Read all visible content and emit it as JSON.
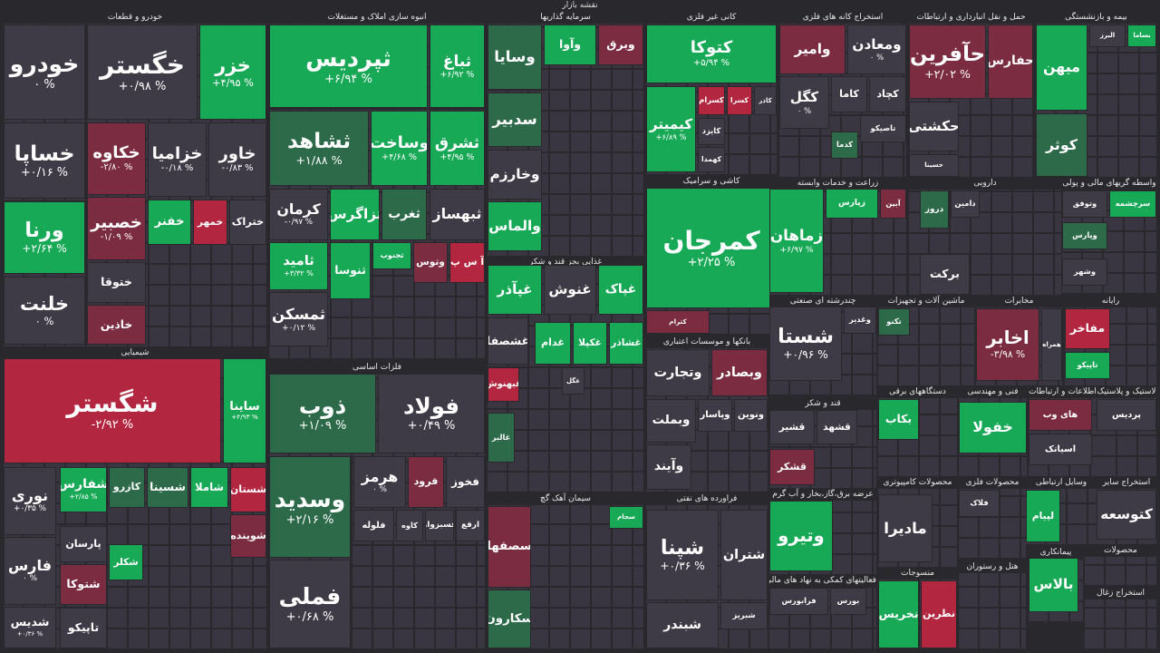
{
  "header": {
    "title": "نقشه بازار"
  },
  "sectors": [
    {
      "title": "خودرو و قطعات",
      "tiles": [
        {
          "name": "خودرو",
          "change": "۰ %",
          "color": "#3f3b46"
        },
        {
          "name": "خگستر",
          "change": "+۰/۹۸ %",
          "color": "#3f3b46"
        },
        {
          "name": "خزر",
          "change": "+۴/۹۵ %",
          "color": "#18a957"
        },
        {
          "name": "خساپا",
          "change": "+۰/۱۶ %",
          "color": "#3f3b46"
        },
        {
          "name": "خکاوه",
          "change": "-۲/۸۰ %",
          "color": "#7b2c40"
        },
        {
          "name": "خزامیا",
          "change": "-۰/۱۸ %",
          "color": "#3f3b46"
        },
        {
          "name": "خاور",
          "change": "-۰/۸۳ %",
          "color": "#3f3b46"
        },
        {
          "name": "ورنا",
          "change": "+۲/۶۴ %",
          "color": "#18a957"
        },
        {
          "name": "خصبیر",
          "change": "-۱/۰۹ %",
          "color": "#7b2c40"
        },
        {
          "name": "خفنر",
          "color": "#18a957"
        },
        {
          "name": "خمهر",
          "color": "#b3263f"
        },
        {
          "name": "ختراک",
          "color": "#3f3b46"
        },
        {
          "name": "خلنت",
          "change": "۰ %",
          "color": "#3f3b46"
        },
        {
          "name": "ختوقا",
          "color": "#3f3b46"
        },
        {
          "name": "خاذین",
          "color": "#7b2c40"
        }
      ]
    },
    {
      "title": "شیمیایی",
      "tiles": [
        {
          "name": "شگستر",
          "change": "-۲/۹۲ %",
          "color": "#b3263f"
        },
        {
          "name": "ساینا",
          "change": "+۴/۹۳ %",
          "color": "#18a957"
        },
        {
          "name": "نوری",
          "change": "+۰/۳۵ %",
          "color": "#3f3b46"
        },
        {
          "name": "فارس",
          "change": "۰ %",
          "color": "#3f3b46"
        },
        {
          "name": "شدیس",
          "change": "+۰/۳۶ %",
          "color": "#3f3b46"
        },
        {
          "name": "شفارس",
          "change": "+۲/۸۵ %",
          "color": "#18a957"
        },
        {
          "name": "کازرو",
          "color": "#2d6a4a"
        },
        {
          "name": "شسینا",
          "color": "#2d6a4a"
        },
        {
          "name": "شاملا",
          "color": "#18a957"
        },
        {
          "name": "شستان",
          "color": "#b3263f"
        },
        {
          "name": "شوینده",
          "color": "#7b2c40"
        },
        {
          "name": "پارسان",
          "color": "#3f3b46"
        },
        {
          "name": "شتوکا",
          "color": "#7b2c40"
        },
        {
          "name": "تاپیکو",
          "color": "#3f3b46"
        },
        {
          "name": "شکلر",
          "color": "#18a957"
        }
      ]
    },
    {
      "title": "انبوه سازی املاک و مستغلات",
      "tiles": [
        {
          "name": "ثپردیس",
          "change": "+۶/۹۴ %",
          "color": "#18a957"
        },
        {
          "name": "ثباغ",
          "change": "+۶/۹۲ %",
          "color": "#18a957"
        },
        {
          "name": "ثشاهد",
          "change": "+۱/۸۸ %",
          "color": "#2d6a4a"
        },
        {
          "name": "وساخت",
          "change": "+۴/۶۸ %",
          "color": "#18a957"
        },
        {
          "name": "ثشرق",
          "change": "+۴/۹۵ %",
          "color": "#18a957"
        },
        {
          "name": "کرمان",
          "change": "-۰/۹۷ %",
          "color": "#3f3b46"
        },
        {
          "name": "ثزاگرس",
          "color": "#18a957"
        },
        {
          "name": "ثغرب",
          "color": "#2d6a4a"
        },
        {
          "name": "ثبهساز",
          "color": "#3f3b46"
        },
        {
          "name": "ثامید",
          "change": "+۳/۳۲ %",
          "color": "#18a957"
        },
        {
          "name": "ثنوسا",
          "color": "#18a957"
        },
        {
          "name": "ثمسکن",
          "change": "+۰/۱۲ %",
          "color": "#3f3b46"
        },
        {
          "name": "ثجنوب",
          "color": "#18a957"
        },
        {
          "name": "وتوس",
          "color": "#7b2c40"
        },
        {
          "name": "آ س پ",
          "color": "#b3263f"
        }
      ]
    },
    {
      "title": "فلزات اساسی",
      "tiles": [
        {
          "name": "ذوب",
          "change": "+۱/۰۹ %",
          "color": "#2d6a4a"
        },
        {
          "name": "فولاد",
          "change": "+۰/۴۹ %",
          "color": "#3f3b46"
        },
        {
          "name": "وسدید",
          "change": "+۲/۱۶ %",
          "color": "#2d6a4a"
        },
        {
          "name": "فملی",
          "change": "+۰/۶۸ %",
          "color": "#3f3b46"
        },
        {
          "name": "هرمز",
          "change": "۰ %",
          "color": "#3f3b46"
        },
        {
          "name": "فرود",
          "color": "#7b2c40"
        },
        {
          "name": "فخوز",
          "color": "#3f3b46"
        },
        {
          "name": "فلوله",
          "color": "#3f3b46"
        },
        {
          "name": "کاوه",
          "color": "#3f3b46"
        },
        {
          "name": "فسبزوار",
          "color": "#3f3b46"
        },
        {
          "name": "ارفع",
          "color": "#3f3b46"
        }
      ]
    },
    {
      "title": "سرمایه گذاریها",
      "tiles": [
        {
          "name": "وسایا",
          "color": "#2d6a4a"
        },
        {
          "name": "وآوا",
          "color": "#18a957"
        },
        {
          "name": "وبرق",
          "color": "#7b2c40"
        },
        {
          "name": "سدبیر",
          "color": "#2d6a4a"
        },
        {
          "name": "وخارزم",
          "color": "#3f3b46"
        },
        {
          "name": "والماس",
          "color": "#18a957"
        }
      ]
    },
    {
      "title": "غذایی بجز قند و شکر",
      "tiles": [
        {
          "name": "غپآذر",
          "color": "#18a957"
        },
        {
          "name": "غنوش",
          "color": "#3f3b46"
        },
        {
          "name": "غپاک",
          "color": "#18a957"
        },
        {
          "name": "غشصفا",
          "color": "#3f3b46"
        },
        {
          "name": "غدام",
          "color": "#18a957"
        },
        {
          "name": "غکپلا",
          "color": "#18a957"
        },
        {
          "name": "غشاذر",
          "color": "#18a957"
        },
        {
          "name": "غبهنوش",
          "color": "#b3263f"
        },
        {
          "name": "غگل",
          "color": "#3f3b46"
        },
        {
          "name": "غالبر",
          "color": "#2d6a4a"
        }
      ]
    },
    {
      "title": "سیمان آهک گچ",
      "tiles": [
        {
          "name": "سصفها",
          "color": "#7b2c40"
        },
        {
          "name": "سکارون",
          "color": "#2d6a4a"
        },
        {
          "name": "سجام",
          "color": "#18a957"
        }
      ]
    },
    {
      "title": "کانی غیر فلزی",
      "tiles": [
        {
          "name": "کتوکا",
          "change": "+۵/۹۴ %",
          "color": "#18a957"
        },
        {
          "name": "کیمیتر",
          "change": "+۶/۸۹ %",
          "color": "#18a957"
        },
        {
          "name": "کسرام",
          "color": "#b3263f"
        },
        {
          "name": "کسرا",
          "color": "#b3263f"
        },
        {
          "name": "کاذر",
          "color": "#3f3b46"
        },
        {
          "name": "کایزد",
          "color": "#3f3b46"
        },
        {
          "name": "کهمدا",
          "color": "#3f3b46"
        }
      ]
    },
    {
      "title": "کاشی و سرامیک",
      "tiles": [
        {
          "name": "کمرجان",
          "change": "+۲/۲۵ %",
          "color": "#18a957"
        },
        {
          "name": "کترام",
          "color": "#7b2c40"
        }
      ]
    },
    {
      "title": "بانکها و موسسات اعتباری",
      "tiles": [
        {
          "name": "وتجارت",
          "color": "#3f3b46"
        },
        {
          "name": "وبصادر",
          "color": "#7b2c40"
        },
        {
          "name": "وبملت",
          "color": "#3f3b46"
        },
        {
          "name": "وپاسار",
          "color": "#3f3b46"
        },
        {
          "name": "ونوین",
          "color": "#3f3b46"
        },
        {
          "name": "وآیند",
          "color": "#3f3b46"
        }
      ]
    },
    {
      "title": "فراورده های نفتی",
      "tiles": [
        {
          "name": "شپنا",
          "change": "+۰/۳۶ %",
          "color": "#3f3b46"
        },
        {
          "name": "شتران",
          "color": "#3f3b46"
        },
        {
          "name": "شبندر",
          "color": "#3f3b46"
        },
        {
          "name": "شبریز",
          "color": "#3f3b46"
        }
      ]
    },
    {
      "title": "استخراج کانه های فلزی",
      "tiles": [
        {
          "name": "وامیر",
          "color": "#7b2c40"
        },
        {
          "name": "ومعادن",
          "change": "۰ %",
          "color": "#3f3b46"
        },
        {
          "name": "کگل",
          "change": "۰ %",
          "color": "#3f3b46"
        },
        {
          "name": "کاما",
          "color": "#3f3b46"
        },
        {
          "name": "کچاد",
          "color": "#3f3b46"
        },
        {
          "name": "کدما",
          "color": "#2d6a4a"
        },
        {
          "name": "تاصیکو",
          "color": "#3f3b46"
        }
      ]
    },
    {
      "title": "زراعت و خدمات وابسته",
      "tiles": [
        {
          "name": "زماهان",
          "change": "+۶/۹۷ %",
          "color": "#18a957"
        },
        {
          "name": "زپارس",
          "color": "#18a957"
        },
        {
          "name": "آبین",
          "color": "#7b2c40"
        }
      ]
    },
    {
      "title": "چندرشته ای صنعتی",
      "tiles": [
        {
          "name": "شستا",
          "change": "+۰/۹۶ %",
          "color": "#3f3b46"
        },
        {
          "name": "وغدیر",
          "color": "#3f3b46"
        }
      ]
    },
    {
      "title": "قند و شکر",
      "tiles": [
        {
          "name": "قشیر",
          "color": "#3f3b46"
        },
        {
          "name": "قشهد",
          "color": "#3f3b46"
        },
        {
          "name": "قشکر",
          "color": "#7b2c40"
        }
      ]
    },
    {
      "title": "عرضه برق،گاز،بخار و آب گرم",
      "tiles": [
        {
          "name": "وتیرو",
          "color": "#18a957"
        }
      ]
    },
    {
      "title": "فعالیتهای کمکی به نهاد های مالی",
      "tiles": [
        {
          "name": "فرابورس",
          "color": "#3f3b46"
        },
        {
          "name": "بورس",
          "color": "#3f3b46"
        }
      ]
    },
    {
      "title": "حمل و نقل انبارداری و ارتباطات",
      "tiles": [
        {
          "name": "حآفرین",
          "change": "+۲/۰۲ %",
          "color": "#7b2c40"
        },
        {
          "name": "حفارس",
          "color": "#7b2c40"
        },
        {
          "name": "حکشتی",
          "color": "#3f3b46"
        },
        {
          "name": "حسینا",
          "color": "#3f3b46"
        }
      ]
    },
    {
      "title": "بیمه و بازنشستگی",
      "tiles": [
        {
          "name": "میهن",
          "color": "#18a957"
        },
        {
          "name": "البرز",
          "color": "#3f3b46"
        },
        {
          "name": "بساما",
          "color": "#18a957"
        },
        {
          "name": "کوثر",
          "color": "#2d6a4a"
        }
      ]
    },
    {
      "title": "دارویی",
      "tiles": [
        {
          "name": "دروز",
          "color": "#2d6a4a"
        },
        {
          "name": "دامین",
          "color": "#3f3b46"
        },
        {
          "name": "برکت",
          "color": "#3f3b46"
        }
      ]
    },
    {
      "title": "واسطه گریهای مالی و پولی",
      "tiles": [
        {
          "name": "وتوفق",
          "color": "#3f3b46"
        },
        {
          "name": "سرچشمه",
          "color": "#18a957"
        },
        {
          "name": "وپارس",
          "color": "#2d6a4a"
        },
        {
          "name": "وشهر",
          "color": "#3f3b46"
        }
      ]
    },
    {
      "title": "ماشین آلات و تجهیزات",
      "tiles": [
        {
          "name": "تکنو",
          "color": "#2d6a4a"
        }
      ]
    },
    {
      "title": "مخابرات",
      "tiles": [
        {
          "name": "اخابر",
          "change": "-۳/۹۸ %",
          "color": "#7b2c40"
        },
        {
          "name": "همراه",
          "color": "#3f3b46"
        }
      ]
    },
    {
      "title": "رایانه",
      "tiles": [
        {
          "name": "مفاخر",
          "color": "#b3263f"
        },
        {
          "name": "تاپیکو",
          "color": "#18a957"
        }
      ]
    },
    {
      "title": "دستگاههای برقی",
      "tiles": [
        {
          "name": "بکاب",
          "color": "#18a957"
        }
      ]
    },
    {
      "title": "فنی و مهندسی",
      "tiles": [
        {
          "name": "خفولا",
          "color": "#18a957"
        }
      ]
    },
    {
      "title": "اطلاعات و ارتباطات",
      "tiles": [
        {
          "name": "های وب",
          "color": "#7b2c40"
        },
        {
          "name": "اسیاتک",
          "color": "#3f3b46"
        }
      ]
    },
    {
      "title": "لاستیک و پلاستیک",
      "tiles": [
        {
          "name": "پردیس",
          "color": "#3f3b46"
        }
      ]
    },
    {
      "title": "محصولات کامپیوتری",
      "tiles": [
        {
          "name": "مادیرا",
          "color": "#3f3b46"
        }
      ]
    },
    {
      "title": "محصولات فلزی",
      "tiles": [
        {
          "name": "فلاک",
          "color": "#3f3b46"
        }
      ]
    },
    {
      "title": "وسایل ارتباطی",
      "tiles": [
        {
          "name": "لپیام",
          "color": "#18a957"
        }
      ]
    },
    {
      "title": "استخراج سایر",
      "tiles": [
        {
          "name": "کتوسعه",
          "color": "#3f3b46"
        }
      ]
    },
    {
      "title": "منسوجات",
      "tiles": [
        {
          "name": "نخریس",
          "color": "#18a957"
        },
        {
          "name": "نطرین",
          "color": "#b3263f"
        }
      ]
    },
    {
      "title": "هتل و رستوران",
      "tiles": []
    },
    {
      "title": "پیمانکاری",
      "tiles": [
        {
          "name": "بالاس",
          "color": "#18a957"
        }
      ]
    },
    {
      "title": "محصولات",
      "tiles": []
    },
    {
      "title": "استخراج زغال",
      "tiles": []
    }
  ]
}
